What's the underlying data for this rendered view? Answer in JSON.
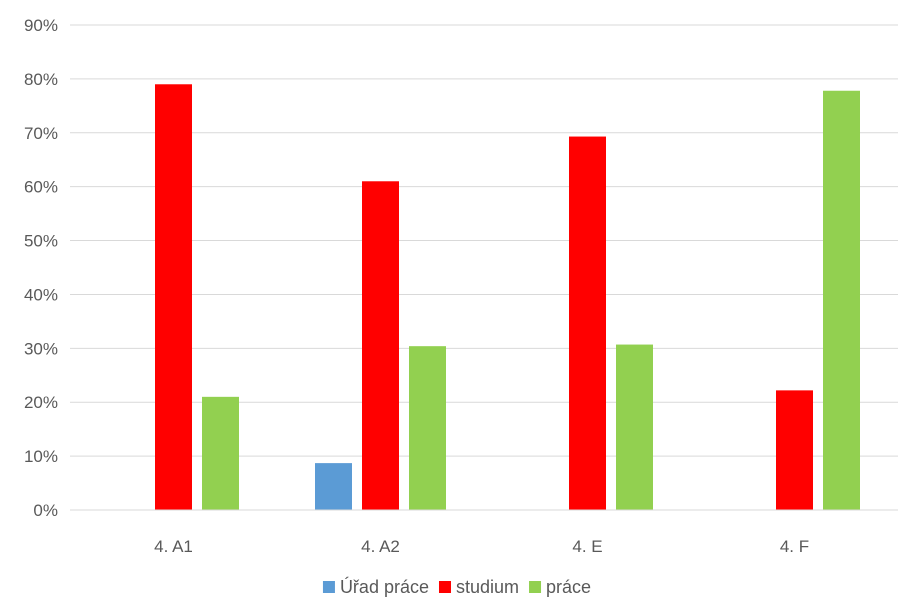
{
  "chart_data": {
    "type": "bar",
    "categories": [
      "4. A1",
      "4. A2",
      "4. E",
      "4. F"
    ],
    "series": [
      {
        "name": "Úřad práce",
        "color": "#5b9bd5",
        "values": [
          0,
          8.7,
          0,
          0
        ]
      },
      {
        "name": "studium",
        "color": "#ff0000",
        "values": [
          79,
          61,
          69.3,
          22.2
        ]
      },
      {
        "name": "práce",
        "color": "#92d050",
        "values": [
          21,
          30.4,
          30.7,
          77.8
        ]
      }
    ],
    "ylim": [
      0,
      90
    ],
    "yticks": [
      "0%",
      "10%",
      "20%",
      "30%",
      "40%",
      "50%",
      "60%",
      "70%",
      "80%",
      "90%"
    ],
    "grid": true,
    "legend_position": "bottom"
  }
}
